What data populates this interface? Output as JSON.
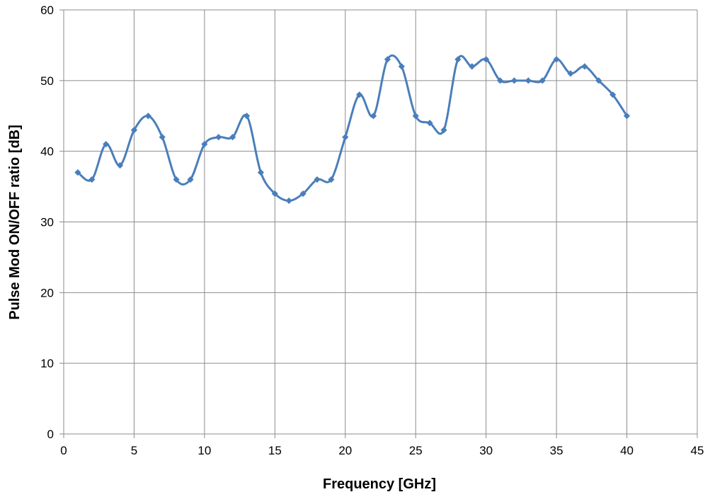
{
  "chart_data": {
    "type": "line",
    "title": "",
    "xlabel": "Frequency [GHz]",
    "ylabel": "Pulse Mod ON/OFF ratio [dB]",
    "xlim": [
      0,
      45
    ],
    "ylim": [
      0,
      60
    ],
    "xticks": [
      0,
      5,
      10,
      15,
      20,
      25,
      30,
      35,
      40,
      45
    ],
    "yticks": [
      0,
      10,
      20,
      30,
      40,
      50,
      60
    ],
    "grid": true,
    "legend": "none",
    "smooth": true,
    "series": [
      {
        "color": "#4a7ebb",
        "x": [
          1,
          2,
          3,
          4,
          5,
          6,
          7,
          8,
          9,
          10,
          11,
          12,
          13,
          14,
          15,
          16,
          17,
          18,
          19,
          20,
          21,
          22,
          23,
          24,
          25,
          26,
          27,
          28,
          29,
          30,
          31,
          32,
          33,
          34,
          35,
          36,
          37,
          38,
          39,
          40
        ],
        "y": [
          37,
          36,
          41,
          38,
          43,
          45,
          42,
          36,
          36,
          41,
          42,
          42,
          45,
          37,
          34,
          33,
          34,
          36,
          36,
          42,
          48,
          45,
          53,
          52,
          45,
          44,
          43,
          53,
          52,
          53,
          50,
          50,
          50,
          50,
          53,
          51,
          52,
          50,
          48,
          45
        ]
      }
    ]
  }
}
